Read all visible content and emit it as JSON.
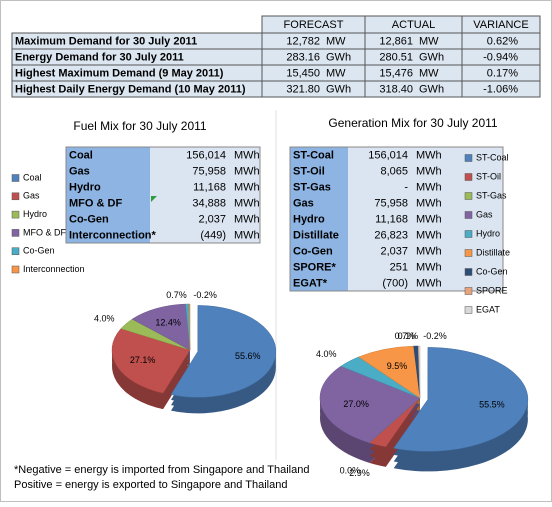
{
  "summary_table": {
    "header": [
      "FORECAST",
      "ACTUAL",
      "VARIANCE"
    ],
    "rows": [
      [
        "Maximum Demand for 30 July 2011",
        "12,782",
        "MW",
        "12,861",
        "MW",
        "0.62%"
      ],
      [
        "Energy Demand for 30 July 2011",
        "283.16",
        "GWh",
        "280.51",
        "GWh",
        "-0.94%"
      ],
      [
        "Highest Maximum Demand (9 May 2011)",
        "15,450",
        "MW",
        "15,476",
        "MW",
        "0.17%"
      ],
      [
        "Highest Daily Energy Demand (10 May 2011)",
        "321.80",
        "GWh",
        "318.40",
        "GWh",
        "-1.06%"
      ]
    ]
  },
  "fuel_table": {
    "rows": [
      [
        "Coal",
        "156,014",
        "MWh"
      ],
      [
        "Gas",
        "75,958",
        "MWh"
      ],
      [
        "Hydro",
        "11,168",
        "MWh"
      ],
      [
        "MFO & DF",
        "34,888",
        "MWh"
      ],
      [
        "Co-Gen",
        "2,037",
        "MWh"
      ],
      [
        "Interconnection*",
        "(449)",
        "MWh"
      ]
    ]
  },
  "generation_table": {
    "rows": [
      [
        "ST-Coal",
        "156,014",
        "MWh"
      ],
      [
        "ST-Oil",
        "8,065",
        "MWh"
      ],
      [
        "ST-Gas",
        "-",
        "MWh"
      ],
      [
        "Gas",
        "75,958",
        "MWh"
      ],
      [
        "Hydro",
        "11,168",
        "MWh"
      ],
      [
        "Distillate",
        "26,823",
        "MWh"
      ],
      [
        "Co-Gen",
        "2,037",
        "MWh"
      ],
      [
        "SPORE*",
        "251",
        "MWh"
      ],
      [
        "EGAT*",
        "(700)",
        "MWh"
      ]
    ]
  },
  "chart_data": [
    {
      "type": "pie",
      "title": "Fuel Mix for 30 July 2011",
      "categories": [
        "Coal",
        "Gas",
        "Hydro",
        "MFO & DF",
        "Co-Gen",
        "Interconnection"
      ],
      "values": [
        55.6,
        27.1,
        4.0,
        12.4,
        0.7,
        -0.2
      ],
      "value_labels": [
        "55.6%",
        "27.1%",
        "4.0%",
        "12.4%",
        "0.7%",
        "-0.2%"
      ],
      "colors": [
        "#4f81bd",
        "#c0504d",
        "#9bbb59",
        "#8064a2",
        "#4bacc6",
        "#f79646"
      ]
    },
    {
      "type": "pie",
      "title": "Generation Mix for 30 July 2011",
      "categories": [
        "ST-Coal",
        "ST-Oil",
        "ST-Gas",
        "Gas",
        "Hydro",
        "Distillate",
        "Co-Gen",
        "SPORE",
        "EGAT"
      ],
      "values": [
        55.5,
        2.9,
        0.0,
        27.0,
        4.0,
        9.5,
        0.7,
        0.1,
        -0.2
      ],
      "value_labels": [
        "55.5%",
        "2.9%",
        "0.0%",
        "27.0%",
        "4.0%",
        "9.5%",
        "0.7%",
        "0.1%",
        "-0.2%"
      ],
      "colors": [
        "#4f81bd",
        "#c0504d",
        "#9bbb59",
        "#8064a2",
        "#4bacc6",
        "#f79646",
        "#2c4d75",
        "#e8a37a",
        "#d9d9d9"
      ]
    }
  ],
  "footnote": [
    "*Negative = energy is imported from Singapore and Thailand",
    "Positive = energy is exported to Singapore and Thailand"
  ]
}
